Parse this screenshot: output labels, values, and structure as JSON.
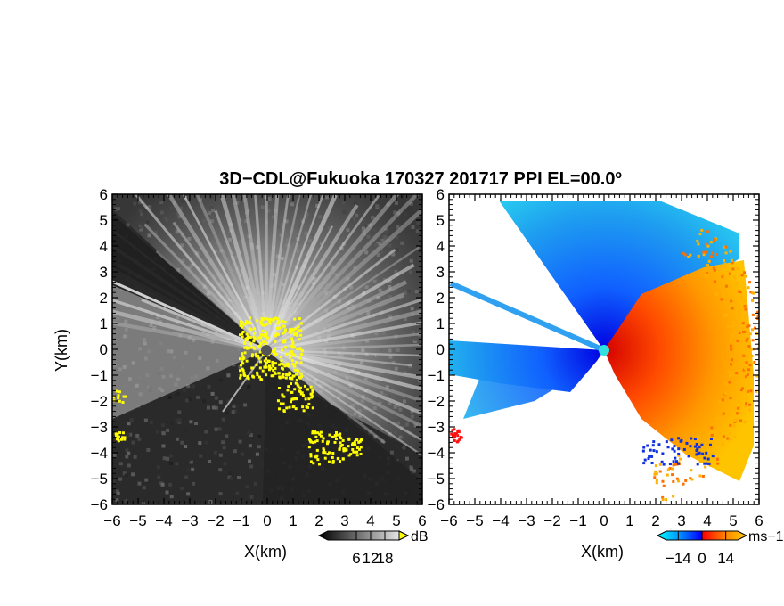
{
  "chart_data": {
    "type": "heatmap",
    "title": "3D−CDL@Fukuoka 170327 201717 PPI EL=00.0º",
    "panels": [
      {
        "name": "reflectivity",
        "xlabel": "X(km)",
        "ylabel": "Y(km)",
        "xlim": [
          -6,
          6
        ],
        "ylim": [
          -6,
          6
        ],
        "ticks": [
          "−6",
          "−5",
          "−4",
          "−3",
          "−2",
          "−1",
          "0",
          "1",
          "2",
          "3",
          "4",
          "5",
          "6"
        ],
        "colorbar": {
          "unit": "dB",
          "tick_labels": [
            "6",
            "12",
            "18"
          ],
          "ticks": [
            6,
            12,
            18
          ],
          "range": [
            -6,
            24
          ],
          "colors": [
            "#000000",
            "#ffffff"
          ],
          "over_color": "#ffff00"
        },
        "grid": false
      },
      {
        "name": "radial-velocity",
        "xlabel": "X(km)",
        "xlim": [
          -6,
          6
        ],
        "ylim": [
          -6,
          6
        ],
        "ticks": [
          "−6",
          "−5",
          "−4",
          "−3",
          "−2",
          "−1",
          "0",
          "1",
          "2",
          "3",
          "4",
          "5",
          "6"
        ],
        "colorbar": {
          "unit": "ms−1",
          "tick_labels": [
            "−14",
            "0",
            "14"
          ],
          "ticks": [
            -14,
            0,
            14
          ],
          "range": [
            -21,
            21
          ],
          "colors": [
            "#00ffff",
            "#0080ff",
            "#0000ff",
            "#ff0000",
            "#ff8000",
            "#ffd000"
          ]
        },
        "grid": false
      }
    ]
  }
}
